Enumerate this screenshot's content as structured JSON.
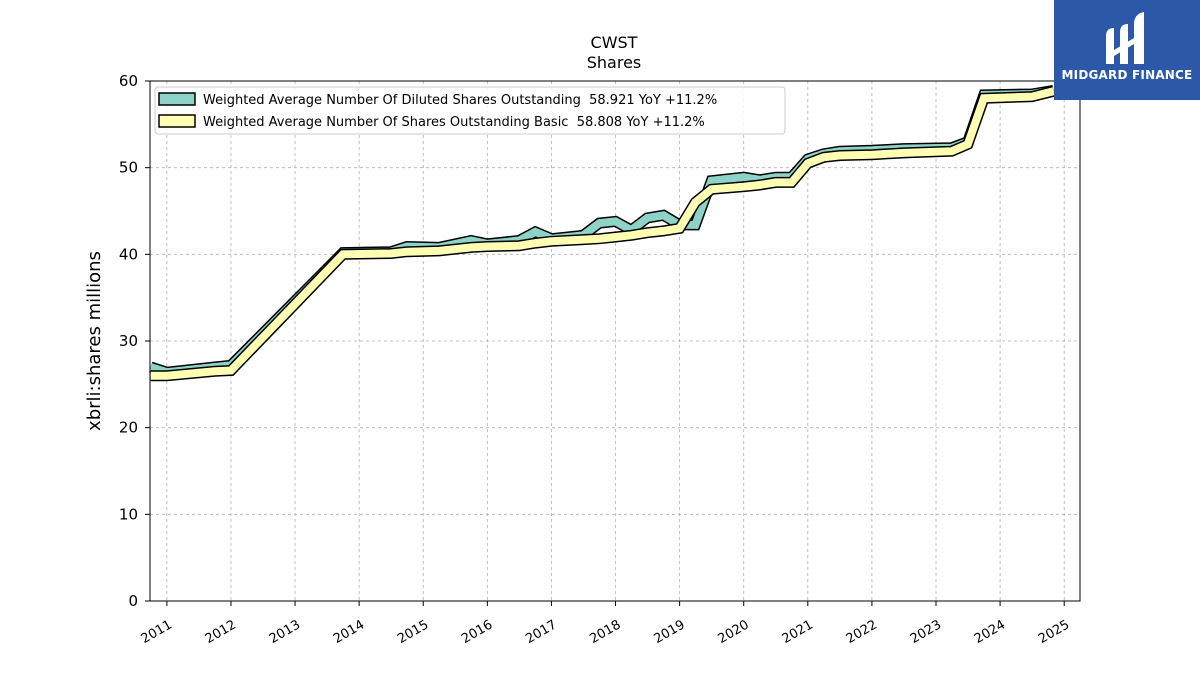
{
  "chart_data": {
    "type": "area",
    "title": "CWST",
    "subtitle": "Shares",
    "ylabel": "xbrli:shares millions",
    "xlabel": "",
    "ylim": [
      0,
      60
    ],
    "xlim": [
      "2010-09-27",
      "2025-04-01"
    ],
    "yticks": [
      0,
      10,
      20,
      30,
      40,
      50,
      60
    ],
    "xticks": [
      "2011",
      "2012",
      "2013",
      "2014",
      "2015",
      "2016",
      "2017",
      "2018",
      "2019",
      "2020",
      "2021",
      "2022",
      "2023",
      "2024",
      "2025"
    ],
    "grid": true,
    "legend_position": "top-left",
    "series": [
      {
        "name": "Weighted Average Number Of Diluted Shares Outstanding  58.921 YoY +11.2%",
        "color": "#8dd3c7",
        "points": [
          [
            "2010-10-01",
            27.0
          ],
          [
            "2011-01-01",
            26.4
          ],
          [
            "2011-10-01",
            27.0
          ],
          [
            "2012-01-01",
            27.2
          ],
          [
            "2013-10-01",
            40.2
          ],
          [
            "2014-07-01",
            40.3
          ],
          [
            "2014-10-01",
            40.9
          ],
          [
            "2015-04-01",
            40.8
          ],
          [
            "2015-10-01",
            41.6
          ],
          [
            "2016-01-01",
            41.2
          ],
          [
            "2016-07-01",
            41.6
          ],
          [
            "2016-10-01",
            42.6
          ],
          [
            "2017-01-01",
            41.8
          ],
          [
            "2017-07-01",
            42.2
          ],
          [
            "2017-10-01",
            43.6
          ],
          [
            "2018-01-01",
            43.8
          ],
          [
            "2018-04-01",
            42.8
          ],
          [
            "2018-07-01",
            44.2
          ],
          [
            "2018-10-01",
            44.5
          ],
          [
            "2019-01-01",
            43.4
          ],
          [
            "2019-04-01",
            43.4
          ],
          [
            "2019-07-01",
            48.5
          ],
          [
            "2020-01-01",
            48.9
          ],
          [
            "2020-04-01",
            48.6
          ],
          [
            "2020-07-01",
            48.9
          ],
          [
            "2020-10-01",
            48.9
          ],
          [
            "2021-01-01",
            51.0
          ],
          [
            "2021-04-01",
            51.6
          ],
          [
            "2021-07-01",
            51.9
          ],
          [
            "2022-01-01",
            52.0
          ],
          [
            "2022-07-01",
            52.2
          ],
          [
            "2023-04-01",
            52.3
          ],
          [
            "2023-07-01",
            53.0
          ],
          [
            "2023-10-01",
            58.4
          ],
          [
            "2024-07-01",
            58.5
          ],
          [
            "2024-11-01",
            58.921
          ]
        ]
      },
      {
        "name": "Weighted Average Number Of Shares Outstanding Basic  58.808 YoY +11.2%",
        "color": "#ffffb3",
        "points": [
          [
            "2010-10-01",
            26.0
          ],
          [
            "2011-01-01",
            26.0
          ],
          [
            "2011-10-01",
            26.5
          ],
          [
            "2012-01-01",
            26.6
          ],
          [
            "2013-10-01",
            40.0
          ],
          [
            "2014-07-01",
            40.1
          ],
          [
            "2014-10-01",
            40.3
          ],
          [
            "2015-04-01",
            40.4
          ],
          [
            "2015-10-01",
            40.8
          ],
          [
            "2016-01-01",
            40.9
          ],
          [
            "2016-07-01",
            41.0
          ],
          [
            "2016-10-01",
            41.3
          ],
          [
            "2017-01-01",
            41.5
          ],
          [
            "2017-07-01",
            41.7
          ],
          [
            "2017-10-01",
            41.8
          ],
          [
            "2018-01-01",
            42.0
          ],
          [
            "2018-04-01",
            42.2
          ],
          [
            "2018-07-01",
            42.5
          ],
          [
            "2018-10-01",
            42.7
          ],
          [
            "2019-01-01",
            43.0
          ],
          [
            "2019-04-01",
            46.0
          ],
          [
            "2019-07-01",
            47.5
          ],
          [
            "2020-01-01",
            47.8
          ],
          [
            "2020-04-01",
            48.0
          ],
          [
            "2020-07-01",
            48.3
          ],
          [
            "2020-10-01",
            48.3
          ],
          [
            "2021-01-01",
            50.5
          ],
          [
            "2021-04-01",
            51.2
          ],
          [
            "2021-07-01",
            51.4
          ],
          [
            "2022-01-01",
            51.5
          ],
          [
            "2022-07-01",
            51.7
          ],
          [
            "2023-04-01",
            51.9
          ],
          [
            "2023-07-01",
            52.7
          ],
          [
            "2023-10-01",
            58.0
          ],
          [
            "2024-07-01",
            58.2
          ],
          [
            "2024-11-01",
            58.808
          ]
        ]
      }
    ]
  },
  "logo": {
    "text": "MIDGARD FINANCE",
    "background": "#2b59a8"
  }
}
